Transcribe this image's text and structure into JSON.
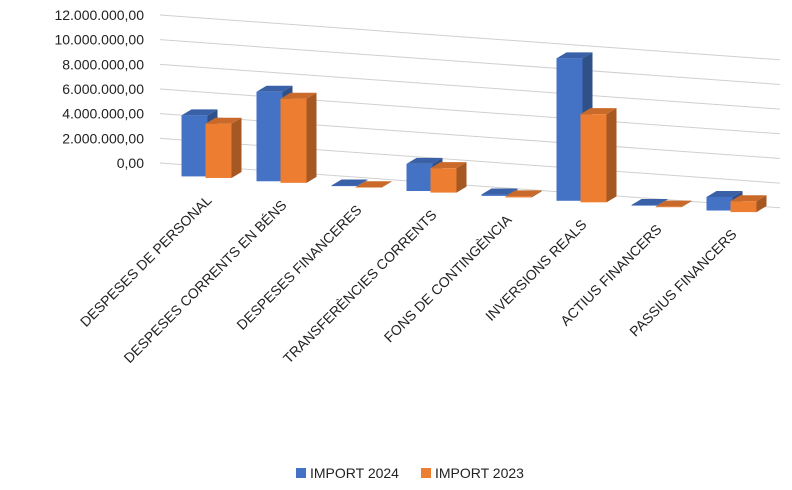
{
  "chart_data": {
    "type": "bar3d",
    "categories": [
      "DESPESES DE PERSONAL",
      "DESPESES CORRENTS EN BÉNS",
      "DESPESES FINANCERES",
      "TRANSFERÈNCIES CORRENTS",
      "FONS DE CONTINGÈNCIA",
      "INVERSIONS REALS",
      "ACTIUS FINANCERS",
      "PASSIUS FINANCERS"
    ],
    "series": [
      {
        "name": "IMPORT 2024",
        "color": "#4472c4",
        "values": [
          4500000,
          6600000,
          50000,
          2000000,
          100000,
          10500000,
          50000,
          1000000
        ]
      },
      {
        "name": "IMPORT 2023",
        "color": "#ed7d31",
        "values": [
          4000000,
          6200000,
          30000,
          1800000,
          80000,
          6500000,
          40000,
          800000
        ]
      }
    ],
    "ylim": [
      0,
      12000000
    ],
    "yticks": [
      {
        "value": 0,
        "label": "0,00"
      },
      {
        "value": 2000000,
        "label": "2.000.000,00"
      },
      {
        "value": 4000000,
        "label": "4.000.000,00"
      },
      {
        "value": 6000000,
        "label": "6.000.000,00"
      },
      {
        "value": 8000000,
        "label": "8.000.000,00"
      },
      {
        "value": 10000000,
        "label": "10.000.000,00"
      },
      {
        "value": 12000000,
        "label": "12.000.000,00"
      }
    ],
    "grid": true
  }
}
